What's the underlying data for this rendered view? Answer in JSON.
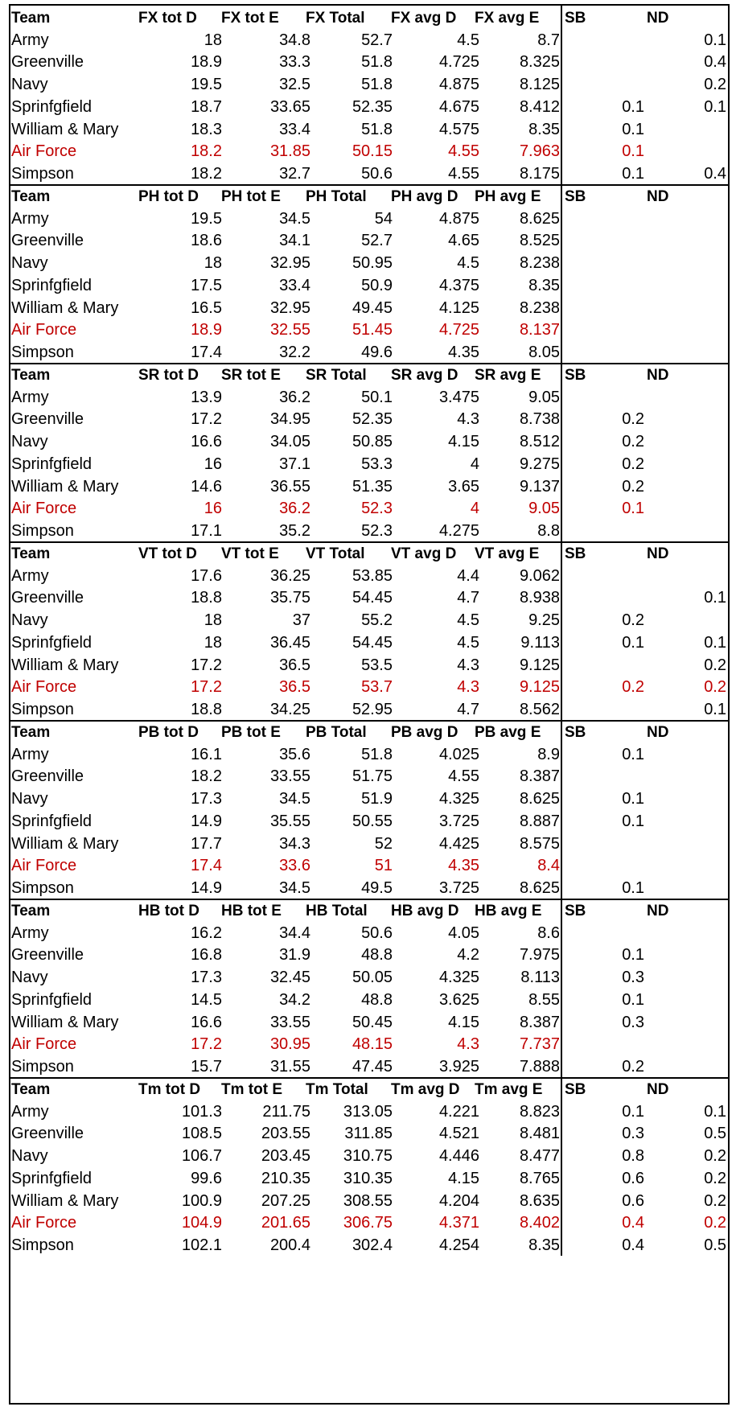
{
  "sections": [
    {
      "headers": [
        "Team",
        "FX tot D",
        "FX tot E",
        "FX Total",
        "FX avg D",
        "FX  avg E",
        "SB",
        "ND"
      ],
      "rows": [
        [
          "Army",
          "18",
          "34.8",
          "52.7",
          "4.5",
          "8.7",
          "",
          "0.1"
        ],
        [
          "Greenville",
          "18.9",
          "33.3",
          "51.8",
          "4.725",
          "8.325",
          "",
          "0.4"
        ],
        [
          "Navy",
          "19.5",
          "32.5",
          "51.8",
          "4.875",
          "8.125",
          "",
          "0.2"
        ],
        [
          "Sprinfgfield",
          "18.7",
          "33.65",
          "52.35",
          "4.675",
          "8.412",
          "0.1",
          "0.1"
        ],
        [
          "William & Mary",
          "18.3",
          "33.4",
          "51.8",
          "4.575",
          "8.35",
          "0.1",
          ""
        ],
        [
          "Air Force",
          "18.2",
          "31.85",
          "50.15",
          "4.55",
          "7.963",
          "0.1",
          ""
        ],
        [
          "Simpson",
          "18.2",
          "32.7",
          "50.6",
          "4.55",
          "8.175",
          "0.1",
          "0.4"
        ]
      ]
    },
    {
      "headers": [
        "Team",
        "PH tot D",
        "PH tot E",
        "PH Total",
        "PH avg D",
        "PH  avg E",
        "SB",
        "ND"
      ],
      "rows": [
        [
          "Army",
          "19.5",
          "34.5",
          "54",
          "4.875",
          "8.625",
          "",
          ""
        ],
        [
          "Greenville",
          "18.6",
          "34.1",
          "52.7",
          "4.65",
          "8.525",
          "",
          ""
        ],
        [
          "Navy",
          "18",
          "32.95",
          "50.95",
          "4.5",
          "8.238",
          "",
          ""
        ],
        [
          "Sprinfgfield",
          "17.5",
          "33.4",
          "50.9",
          "4.375",
          "8.35",
          "",
          ""
        ],
        [
          "William & Mary",
          "16.5",
          "32.95",
          "49.45",
          "4.125",
          "8.238",
          "",
          ""
        ],
        [
          "Air Force",
          "18.9",
          "32.55",
          "51.45",
          "4.725",
          "8.137",
          "",
          ""
        ],
        [
          "Simpson",
          "17.4",
          "32.2",
          "49.6",
          "4.35",
          "8.05",
          "",
          ""
        ]
      ]
    },
    {
      "headers": [
        "Team",
        "SR tot D",
        "SR tot E",
        "SR Total",
        "SR avg D",
        "SR  avg E",
        "SB",
        "ND"
      ],
      "rows": [
        [
          "Army",
          "13.9",
          "36.2",
          "50.1",
          "3.475",
          "9.05",
          "",
          ""
        ],
        [
          "Greenville",
          "17.2",
          "34.95",
          "52.35",
          "4.3",
          "8.738",
          "0.2",
          ""
        ],
        [
          "Navy",
          "16.6",
          "34.05",
          "50.85",
          "4.15",
          "8.512",
          "0.2",
          ""
        ],
        [
          "Sprinfgfield",
          "16",
          "37.1",
          "53.3",
          "4",
          "9.275",
          "0.2",
          ""
        ],
        [
          "William & Mary",
          "14.6",
          "36.55",
          "51.35",
          "3.65",
          "9.137",
          "0.2",
          ""
        ],
        [
          "Air Force",
          "16",
          "36.2",
          "52.3",
          "4",
          "9.05",
          "0.1",
          ""
        ],
        [
          "Simpson",
          "17.1",
          "35.2",
          "52.3",
          "4.275",
          "8.8",
          "",
          ""
        ]
      ]
    },
    {
      "headers": [
        "Team",
        "VT tot D",
        "VT tot E",
        "VT Total",
        "VT avg D",
        "VT  avg E",
        "SB",
        "ND"
      ],
      "rows": [
        [
          "Army",
          "17.6",
          "36.25",
          "53.85",
          "4.4",
          "9.062",
          "",
          ""
        ],
        [
          "Greenville",
          "18.8",
          "35.75",
          "54.45",
          "4.7",
          "8.938",
          "",
          "0.1"
        ],
        [
          "Navy",
          "18",
          "37",
          "55.2",
          "4.5",
          "9.25",
          "0.2",
          ""
        ],
        [
          "Sprinfgfield",
          "18",
          "36.45",
          "54.45",
          "4.5",
          "9.113",
          "0.1",
          "0.1"
        ],
        [
          "William & Mary",
          "17.2",
          "36.5",
          "53.5",
          "4.3",
          "9.125",
          "",
          "0.2"
        ],
        [
          "Air Force",
          "17.2",
          "36.5",
          "53.7",
          "4.3",
          "9.125",
          "0.2",
          "0.2"
        ],
        [
          "Simpson",
          "18.8",
          "34.25",
          "52.95",
          "4.7",
          "8.562",
          "",
          "0.1"
        ]
      ]
    },
    {
      "headers": [
        "Team",
        "PB tot D",
        "PB tot E",
        "PB Total",
        "PB avg D",
        "PB  avg E",
        "SB",
        "ND"
      ],
      "rows": [
        [
          "Army",
          "16.1",
          "35.6",
          "51.8",
          "4.025",
          "8.9",
          "0.1",
          ""
        ],
        [
          "Greenville",
          "18.2",
          "33.55",
          "51.75",
          "4.55",
          "8.387",
          "",
          ""
        ],
        [
          "Navy",
          "17.3",
          "34.5",
          "51.9",
          "4.325",
          "8.625",
          "0.1",
          ""
        ],
        [
          "Sprinfgfield",
          "14.9",
          "35.55",
          "50.55",
          "3.725",
          "8.887",
          "0.1",
          ""
        ],
        [
          "William & Mary",
          "17.7",
          "34.3",
          "52",
          "4.425",
          "8.575",
          "",
          ""
        ],
        [
          "Air Force",
          "17.4",
          "33.6",
          "51",
          "4.35",
          "8.4",
          "",
          ""
        ],
        [
          "Simpson",
          "14.9",
          "34.5",
          "49.5",
          "3.725",
          "8.625",
          "0.1",
          ""
        ]
      ]
    },
    {
      "headers": [
        "Team",
        "HB tot D",
        "HB  tot E",
        "HB  Total",
        "HB avg D",
        "HB  avg E",
        "SB",
        "ND"
      ],
      "rows": [
        [
          "Army",
          "16.2",
          "34.4",
          "50.6",
          "4.05",
          "8.6",
          "",
          ""
        ],
        [
          "Greenville",
          "16.8",
          "31.9",
          "48.8",
          "4.2",
          "7.975",
          "0.1",
          ""
        ],
        [
          "Navy",
          "17.3",
          "32.45",
          "50.05",
          "4.325",
          "8.113",
          "0.3",
          ""
        ],
        [
          "Sprinfgfield",
          "14.5",
          "34.2",
          "48.8",
          "3.625",
          "8.55",
          "0.1",
          ""
        ],
        [
          "William & Mary",
          "16.6",
          "33.55",
          "50.45",
          "4.15",
          "8.387",
          "0.3",
          ""
        ],
        [
          "Air Force",
          "17.2",
          "30.95",
          "48.15",
          "4.3",
          "7.737",
          "",
          ""
        ],
        [
          "Simpson",
          "15.7",
          "31.55",
          "47.45",
          "3.925",
          "7.888",
          "0.2",
          ""
        ]
      ]
    },
    {
      "headers": [
        "Team",
        "Tm tot D",
        "Tm tot E",
        "Tm Total",
        "Tm avg D",
        "Tm avg E",
        "SB",
        "ND"
      ],
      "rows": [
        [
          "Army",
          "101.3",
          "211.75",
          "313.05",
          "4.221",
          "8.823",
          "0.1",
          "0.1"
        ],
        [
          "Greenville",
          "108.5",
          "203.55",
          "311.85",
          "4.521",
          "8.481",
          "0.3",
          "0.5"
        ],
        [
          "Navy",
          "106.7",
          "203.45",
          "310.75",
          "4.446",
          "8.477",
          "0.8",
          "0.2"
        ],
        [
          "Sprinfgfield",
          "99.6",
          "210.35",
          "310.35",
          "4.15",
          "8.765",
          "0.6",
          "0.2"
        ],
        [
          "William & Mary",
          "100.9",
          "207.25",
          "308.55",
          "4.204",
          "8.635",
          "0.6",
          "0.2"
        ],
        [
          "Air Force",
          "104.9",
          "201.65",
          "306.75",
          "4.371",
          "8.402",
          "0.4",
          "0.2"
        ],
        [
          "Simpson",
          "102.1",
          "200.4",
          "302.4",
          "4.254",
          "8.35",
          "0.4",
          "0.5"
        ]
      ]
    }
  ],
  "highlight_team": "Air Force",
  "highlight_color": "#c00000"
}
